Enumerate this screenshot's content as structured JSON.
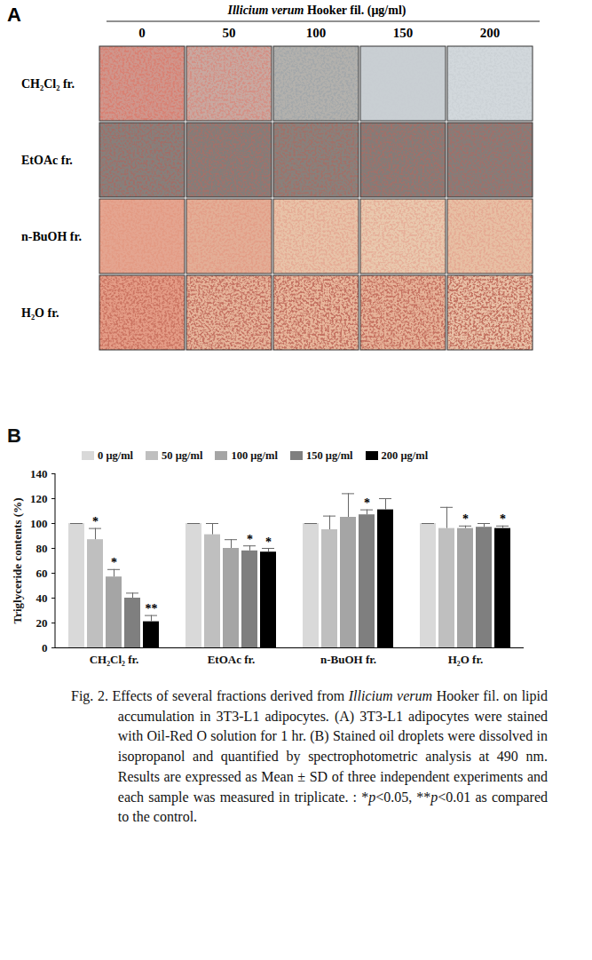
{
  "panel_a": {
    "label": "A",
    "header": {
      "species": "Illicium verum",
      "rest": " Hooker fil. (μg/ml)"
    },
    "columns": [
      "0",
      "50",
      "100",
      "150",
      "200"
    ],
    "rows": [
      "CH₂Cl₂ fr.",
      "EtOAc  fr.",
      "n-BuOH fr.",
      "H₂O fr."
    ]
  },
  "chart_data": {
    "type": "bar",
    "panel_label": "B",
    "y_label": "Triglyceride contents (%)",
    "categories": [
      "CH₂Cl₂ fr.",
      "EtOAc fr.",
      "n-BuOH fr.",
      "H₂O fr."
    ],
    "ylim": [
      0,
      140
    ],
    "yticks": [
      0,
      20,
      40,
      60,
      80,
      100,
      120,
      140
    ],
    "grid": false,
    "legend": "top",
    "series": [
      {
        "name": "0 μg/ml",
        "color": "#d9d9d9",
        "values": [
          100,
          100,
          100,
          100
        ],
        "errors": [
          0,
          0,
          0,
          0
        ],
        "significance": [
          null,
          null,
          null,
          null
        ]
      },
      {
        "name": "50 μg/ml",
        "color": "#bfbfbf",
        "values": [
          87,
          91,
          95,
          96
        ],
        "errors": [
          9,
          9,
          11,
          17
        ],
        "significance": [
          "*",
          null,
          null,
          null
        ]
      },
      {
        "name": "100 μg/ml",
        "color": "#a5a5a5",
        "values": [
          57,
          80,
          105,
          96
        ],
        "errors": [
          6,
          7,
          19,
          2
        ],
        "significance": [
          "*",
          null,
          null,
          "*"
        ]
      },
      {
        "name": "150 μg/ml",
        "color": "#7f7f7f",
        "values": [
          40,
          78,
          107,
          97
        ],
        "errors": [
          4,
          4,
          4,
          3
        ],
        "significance": [
          null,
          "*",
          "*",
          null
        ]
      },
      {
        "name": "200 μg/ml",
        "color": "#000000",
        "values": [
          21,
          77,
          111,
          96
        ],
        "errors": [
          5,
          3,
          9,
          2
        ],
        "significance": [
          "**",
          "*",
          null,
          "*"
        ]
      }
    ]
  },
  "caption": [
    {
      "text": "Fig. 2. Effects of several fractions derived from "
    },
    {
      "text": "Illicium verum",
      "italic": true
    },
    {
      "text": " Hooker fil. on lipid accumulation in 3T3-L1 adipocytes. (A) 3T3-L1 adipocytes were stained with Oil-Red O solution for 1 hr. (B) Stained oil droplets were dissolved in isopropanol and quantified by spectrophotometric analysis at 490 nm. Results are expressed as Mean ± SD of three independent experiments and each sample was measured in triplicate. : *"
    },
    {
      "text": "p",
      "italic": true
    },
    {
      "text": "<0.05, **"
    },
    {
      "text": "p",
      "italic": true
    },
    {
      "text": "<0.01 as compared to the control."
    }
  ]
}
